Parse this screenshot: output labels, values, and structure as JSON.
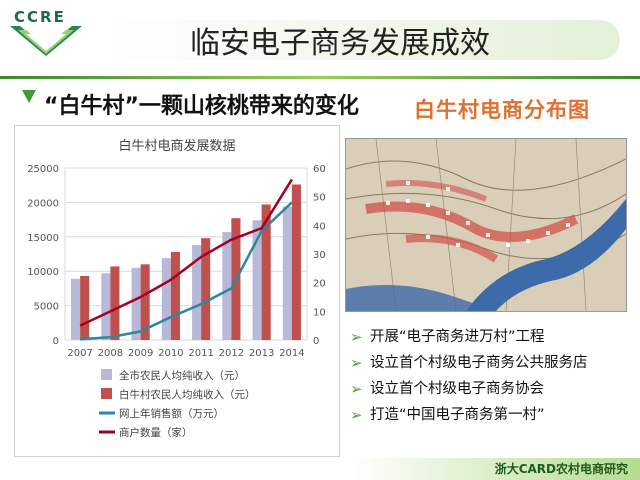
{
  "logo": {
    "text": "CCRE"
  },
  "slide": {
    "title": "临安电子商务发展成效",
    "subtitle": "“白牛村”一颗山核桃带来的变化",
    "map_title": "白牛村电商分布图",
    "footer": "浙大CARD农村电商研究",
    "bullets": [
      "开展“电子商务进万村”工程",
      "设立首个村级电子商务公共服务店",
      "设立首个村级电子商务协会",
      "打造“中国电子商务第一村”"
    ]
  },
  "colors": {
    "bar_county": "#b8b8d8",
    "bar_village": "#c0504d",
    "line_sales": "#31859c",
    "line_merchants": "#a50021",
    "accent_green": "#3f9b2f",
    "map_title_orange": "#e07030"
  },
  "chart_data": {
    "type": "bar",
    "title": "白牛村电商发展数据",
    "categories": [
      "2007",
      "2008",
      "2009",
      "2010",
      "2011",
      "2012",
      "2013",
      "2014"
    ],
    "y_left": {
      "ylim": [
        0,
        25000
      ],
      "ticks": [
        "0",
        "5000",
        "10000",
        "15000",
        "20000",
        "25000"
      ]
    },
    "y_right": {
      "ylim": [
        0,
        60
      ],
      "ticks": [
        "0",
        "10",
        "20",
        "30",
        "40",
        "50",
        "60"
      ]
    },
    "grid": true,
    "legend_position": "bottom",
    "series": [
      {
        "name": "全市农民人均纯收入（元）",
        "kind": "bar",
        "axis": "left",
        "values": [
          8900,
          9700,
          10500,
          11900,
          13800,
          15700,
          17400,
          19400
        ]
      },
      {
        "name": "白牛村农民人均纯收入（元）",
        "kind": "bar",
        "axis": "left",
        "values": [
          9300,
          10700,
          11000,
          12800,
          14800,
          17700,
          19700,
          22600
        ]
      },
      {
        "name": "网上年销售额（万元）",
        "kind": "line",
        "axis": "right",
        "values": [
          0.2,
          1,
          3,
          8,
          12.5,
          18,
          38,
          48
        ]
      },
      {
        "name": "商户数量（家）",
        "kind": "line",
        "axis": "right",
        "values": [
          5,
          10,
          15,
          21,
          29,
          35,
          39,
          56
        ]
      }
    ]
  }
}
